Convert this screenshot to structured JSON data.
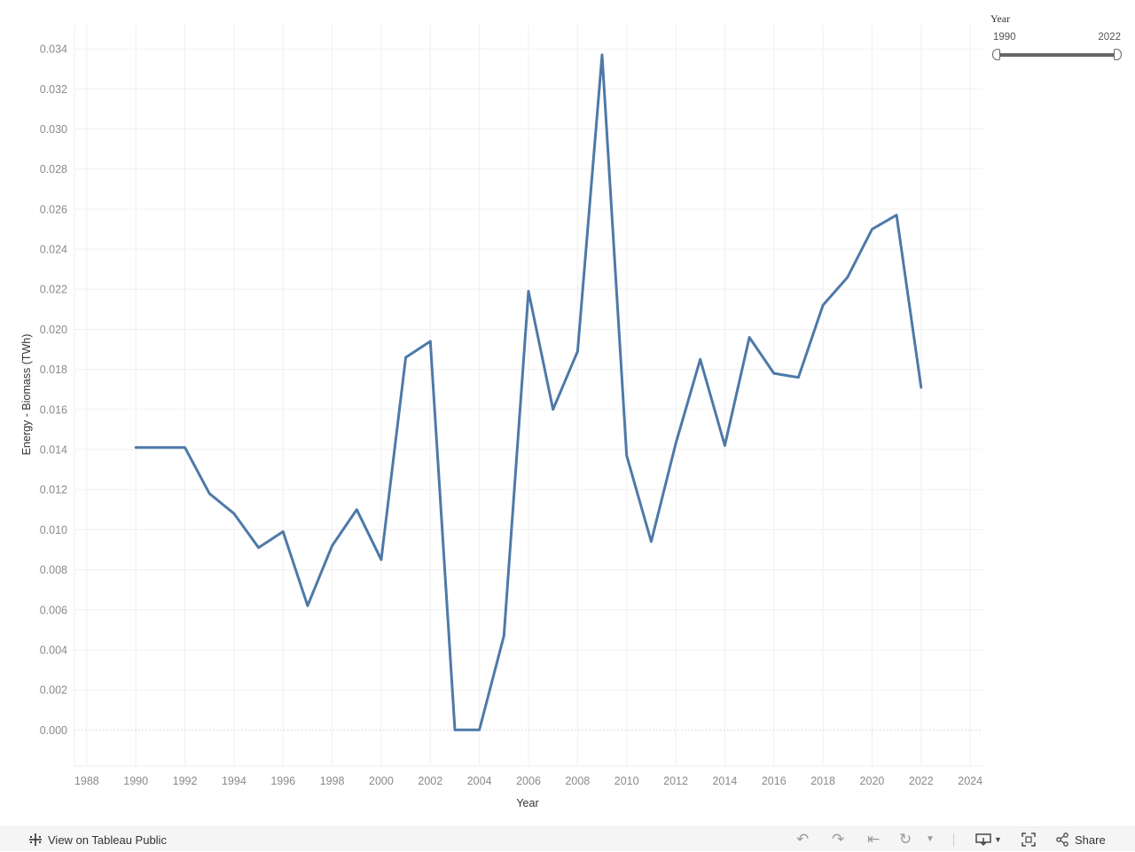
{
  "chart_data": {
    "type": "line",
    "xlabel": "Year",
    "ylabel": "Energy - Biomass (TWh)",
    "xlim": [
      1987.5,
      2024.5
    ],
    "ylim": [
      -0.0018,
      0.0352
    ],
    "x_ticks": [
      1988,
      1990,
      1992,
      1994,
      1996,
      1998,
      2000,
      2002,
      2004,
      2006,
      2008,
      2010,
      2012,
      2014,
      2016,
      2018,
      2020,
      2022,
      2024
    ],
    "y_ticks": [
      "0.000",
      "0.002",
      "0.004",
      "0.006",
      "0.008",
      "0.010",
      "0.012",
      "0.014",
      "0.016",
      "0.018",
      "0.020",
      "0.022",
      "0.024",
      "0.026",
      "0.028",
      "0.030",
      "0.032",
      "0.034"
    ],
    "grid": true,
    "color": "#4e79a7",
    "x": [
      1990,
      1991,
      1992,
      1993,
      1994,
      1995,
      1996,
      1997,
      1998,
      1999,
      2000,
      2001,
      2002,
      2003,
      2004,
      2005,
      2006,
      2007,
      2008,
      2009,
      2010,
      2011,
      2012,
      2013,
      2014,
      2015,
      2016,
      2017,
      2018,
      2019,
      2020,
      2021,
      2022
    ],
    "values": [
      0.0141,
      0.0141,
      0.0141,
      0.0118,
      0.0108,
      0.0091,
      0.0099,
      0.0062,
      0.0092,
      0.011,
      0.0085,
      0.0186,
      0.0194,
      0.0,
      0.0,
      0.0047,
      0.0219,
      0.016,
      0.0189,
      0.0337,
      0.0137,
      0.0094,
      0.0143,
      0.0185,
      0.0142,
      0.0196,
      0.0178,
      0.0176,
      0.0212,
      0.0226,
      0.025,
      0.0257,
      0.0171
    ]
  },
  "filter": {
    "title": "Year",
    "min_label": "1990",
    "max_label": "2022"
  },
  "toolbar": {
    "view_label": "View on Tableau Public",
    "share_label": "Share"
  }
}
